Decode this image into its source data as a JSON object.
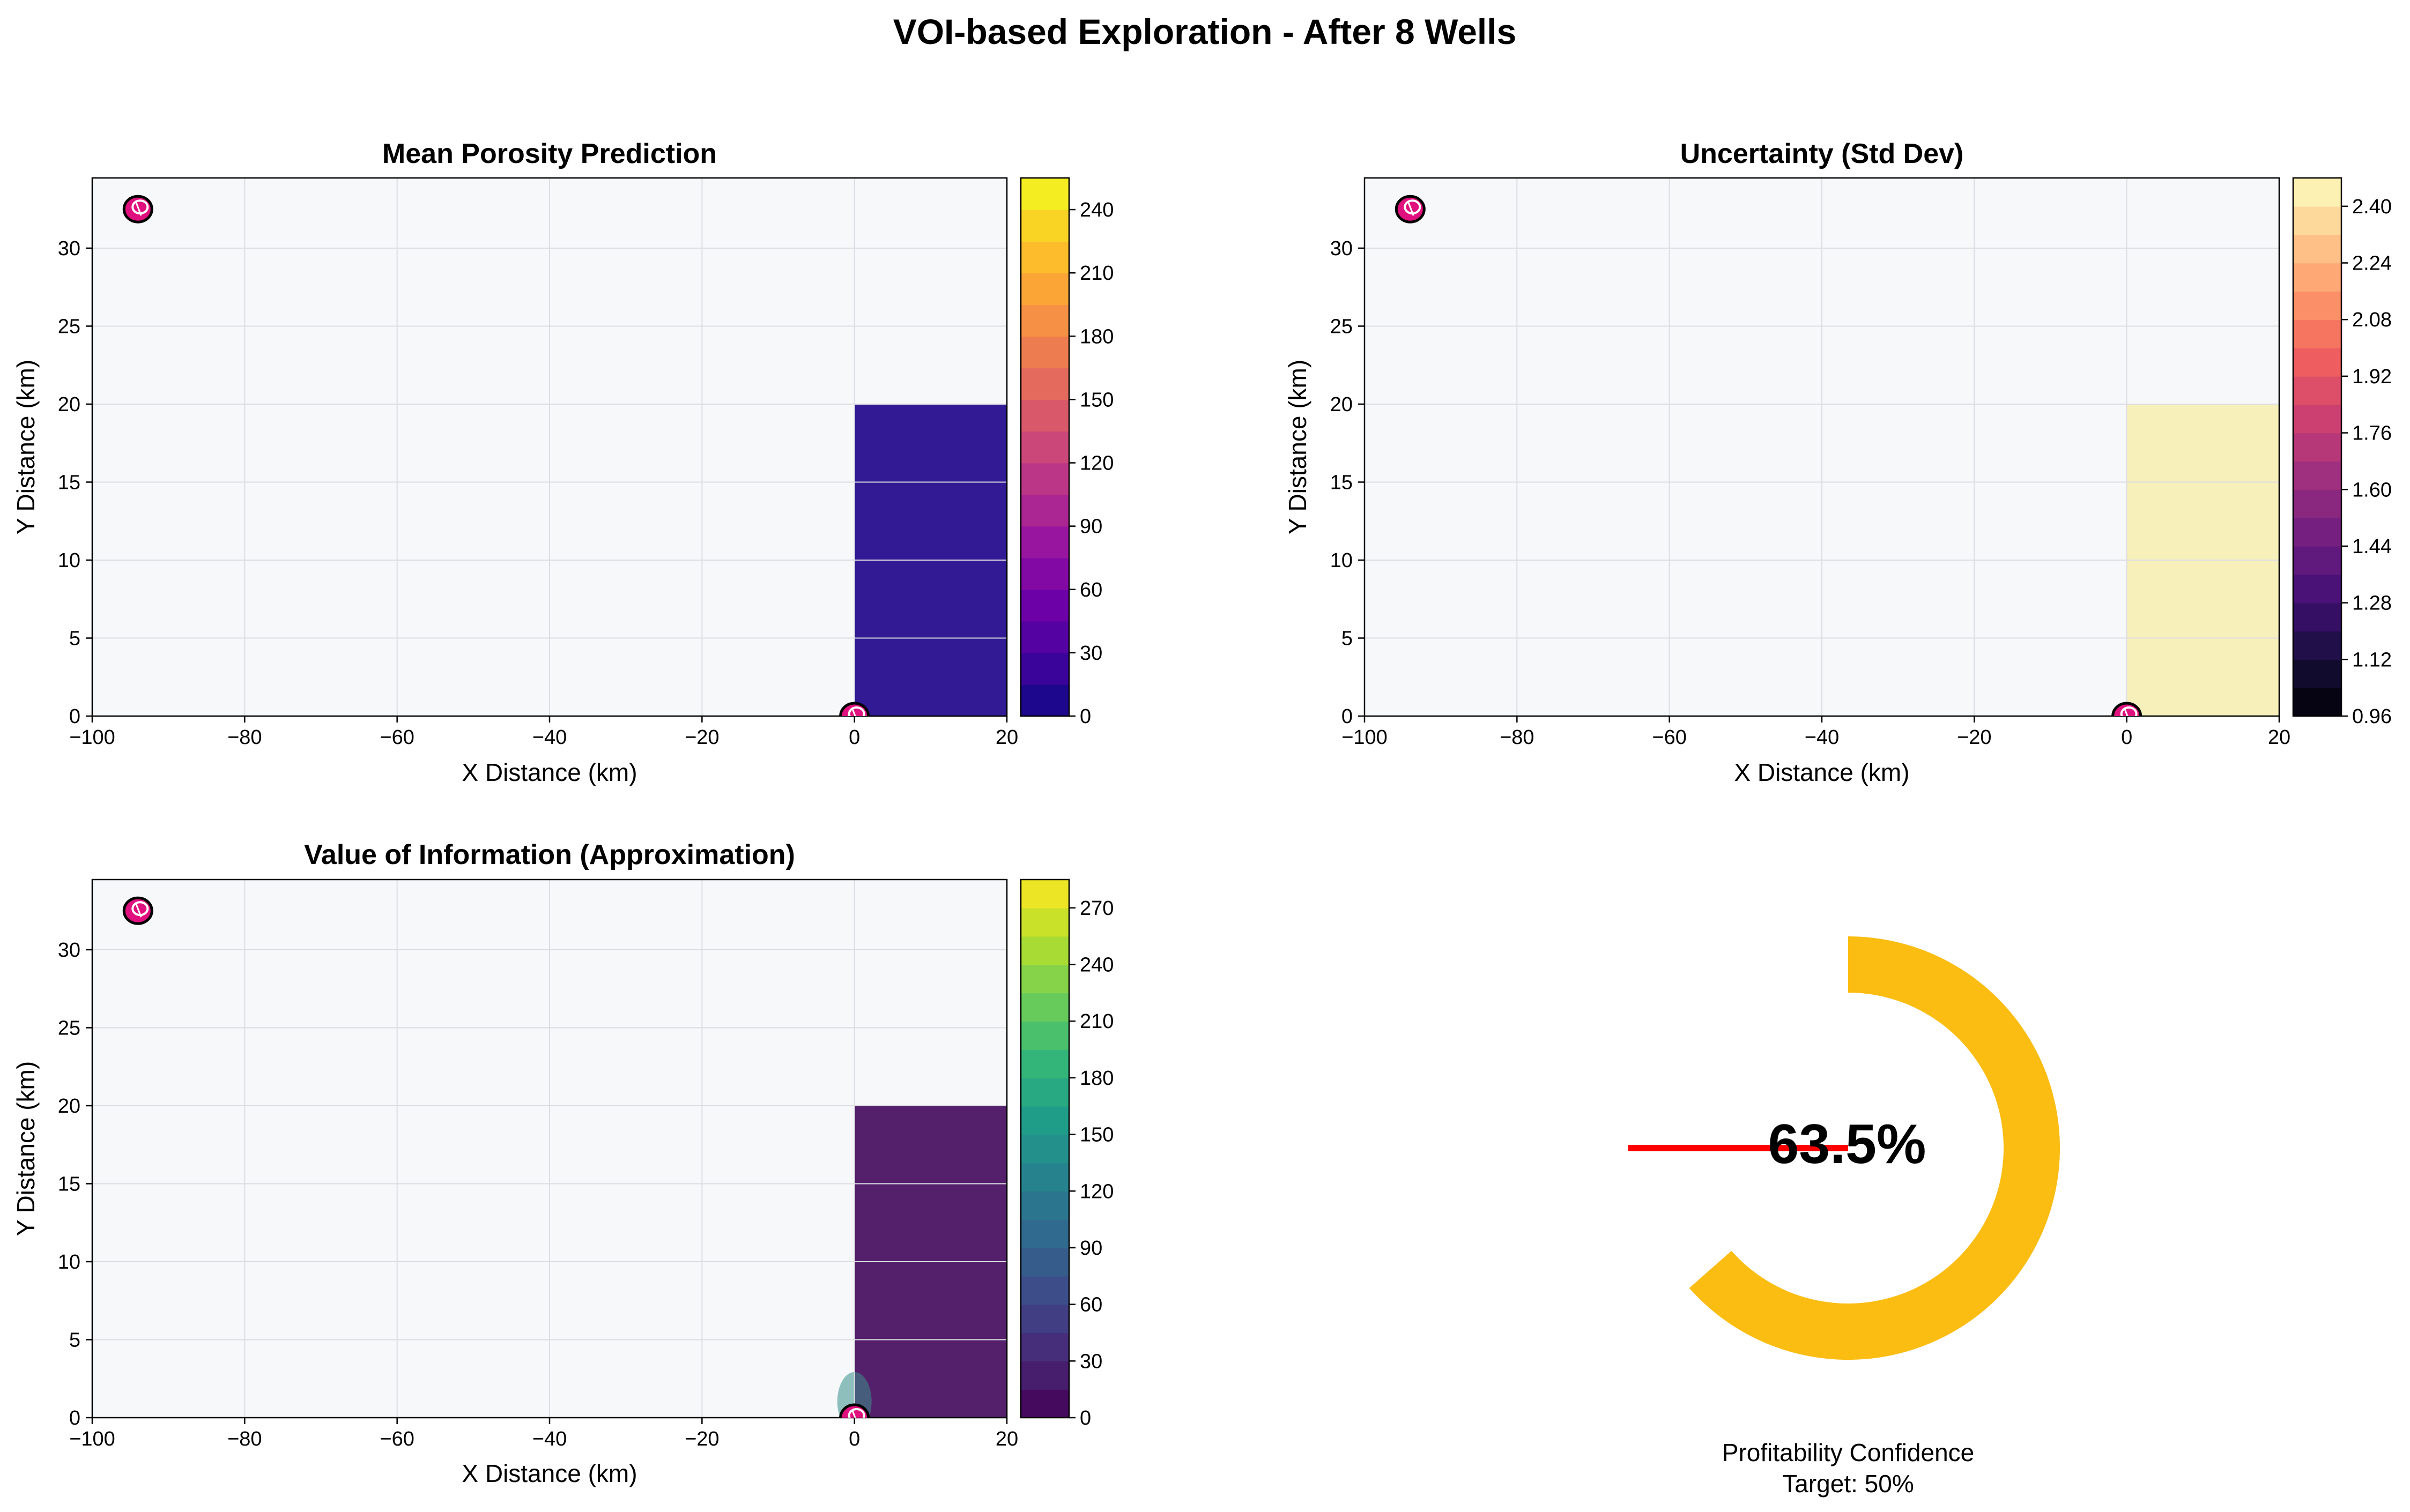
{
  "suptitle": "VOI-based Exploration - After 8 Wells",
  "colors": {
    "plot_bg": "#f7f8fa",
    "grid": "#dcdde2",
    "gauge": "#fbbd12",
    "target_line": "#ff0000",
    "well_marker": "#e0117f"
  },
  "chart_data": [
    {
      "type": "heatmap",
      "title": "Mean Porosity Prediction",
      "xlabel": "X Distance (km)",
      "ylabel": "Y Distance (km)",
      "xlim": [
        -100,
        20
      ],
      "ylim": [
        0,
        34.5
      ],
      "xticks": [
        -100,
        -80,
        -60,
        -40,
        -20,
        0,
        20
      ],
      "yticks": [
        0,
        5,
        10,
        15,
        20,
        25,
        30
      ],
      "colormap": "plasma",
      "colorbar": {
        "range": [
          0,
          255
        ],
        "ticks": [
          0,
          30,
          60,
          90,
          120,
          150,
          180,
          210,
          240
        ],
        "levels": 17
      },
      "regions": [
        {
          "x": [
            0,
            20
          ],
          "y": [
            0,
            20
          ],
          "value": 8,
          "color": "#311a94"
        }
      ],
      "wells": [
        {
          "x": -94,
          "y": 32.5
        },
        {
          "x": 0,
          "y": 0
        }
      ],
      "grid": true
    },
    {
      "type": "heatmap",
      "title": "Uncertainty (Std Dev)",
      "xlabel": "X Distance (km)",
      "ylabel": "Y Distance (km)",
      "xlim": [
        -100,
        20
      ],
      "ylim": [
        0,
        34.5
      ],
      "xticks": [
        -100,
        -80,
        -60,
        -40,
        -20,
        0,
        20
      ],
      "yticks": [
        0,
        5,
        10,
        15,
        20,
        25,
        30
      ],
      "colormap": "magma",
      "colorbar": {
        "range": [
          0.96,
          2.48
        ],
        "ticks": [
          "0.96",
          "1.12",
          "1.28",
          "1.44",
          "1.60",
          "1.76",
          "1.92",
          "2.08",
          "2.24",
          "2.40"
        ],
        "levels": 19
      },
      "regions": [
        {
          "x": [
            0,
            20
          ],
          "y": [
            0,
            20
          ],
          "value": 2.45,
          "color": "#f8f0bb"
        }
      ],
      "wells": [
        {
          "x": -94,
          "y": 32.5
        },
        {
          "x": 0,
          "y": 0
        }
      ],
      "grid": true
    },
    {
      "type": "heatmap",
      "title": "Value of Information (Approximation)",
      "xlabel": "X Distance (km)",
      "ylabel": "Y Distance (km)",
      "xlim": [
        -100,
        20
      ],
      "ylim": [
        0,
        34.5
      ],
      "xticks": [
        -100,
        -80,
        -60,
        -40,
        -20,
        0,
        20
      ],
      "yticks": [
        0,
        5,
        10,
        15,
        20,
        25,
        30
      ],
      "colormap": "viridis",
      "colorbar": {
        "range": [
          0,
          285
        ],
        "ticks": [
          0,
          30,
          60,
          90,
          120,
          150,
          180,
          210,
          240,
          270
        ],
        "levels": 19
      },
      "regions": [
        {
          "x": [
            0,
            20
          ],
          "y": [
            0,
            20
          ],
          "value": 8,
          "color": "#541f6b"
        }
      ],
      "wells": [
        {
          "x": -94,
          "y": 32.5
        },
        {
          "x": 0,
          "y": 0
        }
      ],
      "grid": true
    },
    {
      "type": "gauge",
      "value": 63.5,
      "value_label": "63.5%",
      "target": 50,
      "label_line1": "Profitability Confidence",
      "label_line2": "Target: 50%"
    }
  ]
}
